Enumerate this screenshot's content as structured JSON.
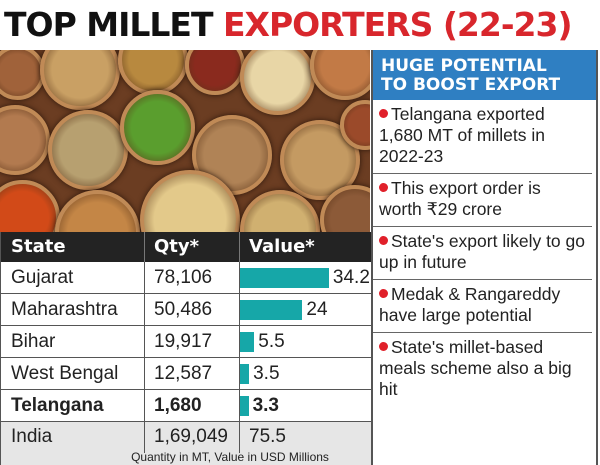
{
  "title": {
    "part1": "TOP MILLET ",
    "part2": "EXPORTERS (22-23)"
  },
  "colors": {
    "bar": "#16a7a8",
    "title_accent": "#d8262c",
    "panel_header": "#2f7fc2"
  },
  "chart_data": {
    "type": "table",
    "columns": [
      "State",
      "Qty*",
      "Value*"
    ],
    "rows": [
      {
        "state": "Gujarat",
        "qty": "78,106",
        "value": 34.2
      },
      {
        "state": "Maharashtra",
        "qty": "50,486",
        "value": 24
      },
      {
        "state": "Bihar",
        "qty": "19,917",
        "value": 5.5
      },
      {
        "state": "West Bengal",
        "qty": "12,587",
        "value": 3.5
      },
      {
        "state": "Telangana",
        "qty": "1,680",
        "value": 3.3,
        "highlight": true
      }
    ],
    "total": {
      "state": "India",
      "qty": "1,69,049",
      "value": 75.5
    },
    "note": "Quantity in MT, Value in USD Millions"
  },
  "panel": {
    "header": [
      "HUGE POTENTIAL",
      "TO BOOST EXPORT"
    ],
    "points": [
      "Telangana exported 1,680 MT of millets in 2022-23",
      "This export order is worth ₹29 crore",
      "State's export likely to go up in future",
      "Medak & Rangareddy have large potential",
      "State's millet-based meals scheme also a big hit"
    ]
  }
}
